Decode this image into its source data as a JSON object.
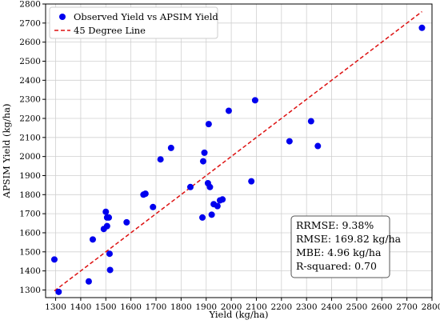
{
  "chart_data": {
    "type": "scatter",
    "xlabel": "Yield (kg/ha)",
    "ylabel": "APSIM Yield (kg/ha)",
    "xlim": [
      1260,
      2800
    ],
    "ylim": [
      1260,
      2800
    ],
    "x_ticks": [
      1300,
      1400,
      1500,
      1600,
      1700,
      1800,
      1900,
      2000,
      2100,
      2200,
      2300,
      2400,
      2500,
      2600,
      2700,
      2800
    ],
    "y_ticks": [
      1300,
      1400,
      1500,
      1600,
      1700,
      1800,
      1900,
      2000,
      2100,
      2200,
      2300,
      2400,
      2500,
      2600,
      2700,
      2800
    ],
    "grid": true,
    "legend_placement": "top-left",
    "series": [
      {
        "name": "Observed Yield vs APSIM Yield",
        "kind": "scatter",
        "color": "#0000ee",
        "points": [
          [
            1295,
            1460
          ],
          [
            1312,
            1290
          ],
          [
            1432,
            1345
          ],
          [
            1448,
            1565
          ],
          [
            1492,
            1620
          ],
          [
            1500,
            1710
          ],
          [
            1505,
            1635
          ],
          [
            1505,
            1680
          ],
          [
            1512,
            1680
          ],
          [
            1515,
            1490
          ],
          [
            1517,
            1405
          ],
          [
            1583,
            1655
          ],
          [
            1650,
            1800
          ],
          [
            1658,
            1805
          ],
          [
            1688,
            1735
          ],
          [
            1718,
            1985
          ],
          [
            1760,
            2045
          ],
          [
            1837,
            1840
          ],
          [
            1885,
            1680
          ],
          [
            1888,
            1975
          ],
          [
            1893,
            2020
          ],
          [
            1907,
            1860
          ],
          [
            1910,
            2170
          ],
          [
            1915,
            1840
          ],
          [
            1922,
            1695
          ],
          [
            1930,
            1750
          ],
          [
            1945,
            1740
          ],
          [
            1955,
            1770
          ],
          [
            1965,
            1775
          ],
          [
            1990,
            2240
          ],
          [
            2080,
            1870
          ],
          [
            2095,
            2295
          ],
          [
            2232,
            2080
          ],
          [
            2318,
            2185
          ],
          [
            2345,
            2055
          ],
          [
            2760,
            2675
          ]
        ]
      },
      {
        "name": "45 Degree Line",
        "kind": "line",
        "color": "#dd1111",
        "points": [
          [
            1295,
            1295
          ],
          [
            2760,
            2760
          ]
        ]
      }
    ],
    "stats_box": [
      "RRMSE: 9.38%",
      "RMSE: 169.82 kg/ha",
      "MBE: 4.96 kg/ha",
      "R-squared: 0.70"
    ]
  }
}
